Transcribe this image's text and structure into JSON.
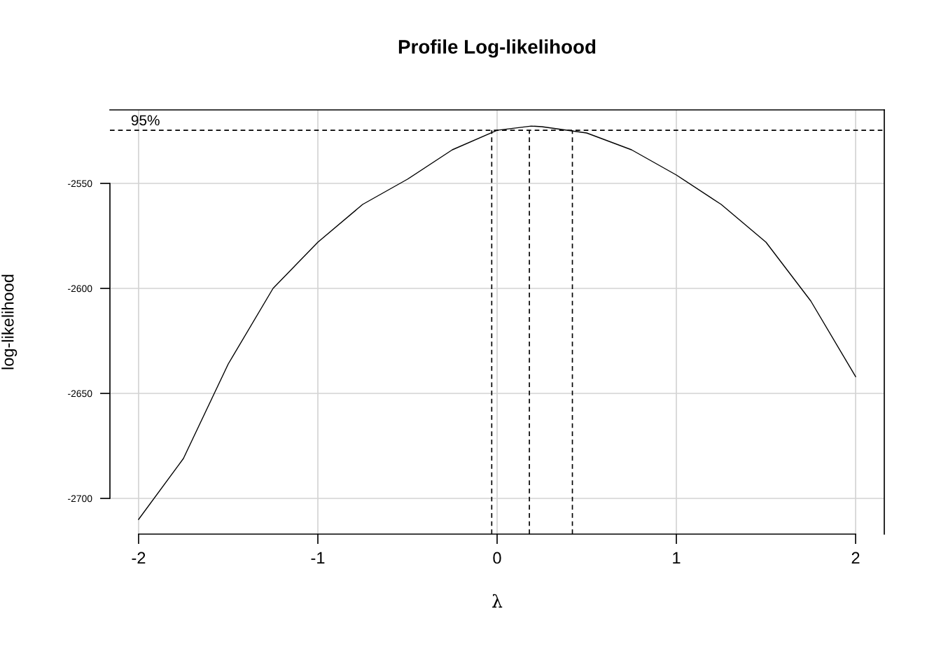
{
  "chart_data": {
    "type": "line",
    "title": "Profile Log-likelihood",
    "xlabel": "λ",
    "ylabel": "log-likelihood",
    "x": [
      -2,
      -1.75,
      -1.5,
      -1.25,
      -1,
      -0.75,
      -0.5,
      -0.25,
      0,
      0.19,
      0.25,
      0.5,
      0.75,
      1,
      1.25,
      1.5,
      1.75,
      2
    ],
    "series": [
      {
        "color": "#000000",
        "values": [
          -2710,
          -2681,
          -2636,
          -2600,
          -2578,
          -2560,
          -2548,
          -2534,
          -2524.7,
          -2522.7,
          -2523,
          -2526,
          -2534,
          -2546,
          -2560,
          -2578,
          -2606,
          -2642
        ]
      }
    ],
    "xlim": [
      -2.16,
      2.16
    ],
    "ylim": [
      -2717,
      -2515
    ],
    "xticks": [
      -2,
      -1,
      0,
      1,
      2
    ],
    "yticks": [
      -2700,
      -2650,
      -2600,
      -2550
    ],
    "grid": true,
    "marker": "none",
    "line_style": "solid",
    "ref_lines": [
      {
        "axis": "y",
        "value": -2524.7,
        "color": "#000000",
        "line_style": "dashed"
      },
      {
        "axis": "x",
        "value": -0.03,
        "color": "#000000",
        "line_style": "dashed"
      },
      {
        "axis": "x",
        "value": 0.18,
        "color": "#000000",
        "line_style": "dashed"
      },
      {
        "axis": "x",
        "value": 0.42,
        "color": "#000000",
        "line_style": "dashed"
      }
    ],
    "annotations": [
      {
        "text": "95%",
        "x": -2,
        "y": -2524.7
      }
    ]
  }
}
